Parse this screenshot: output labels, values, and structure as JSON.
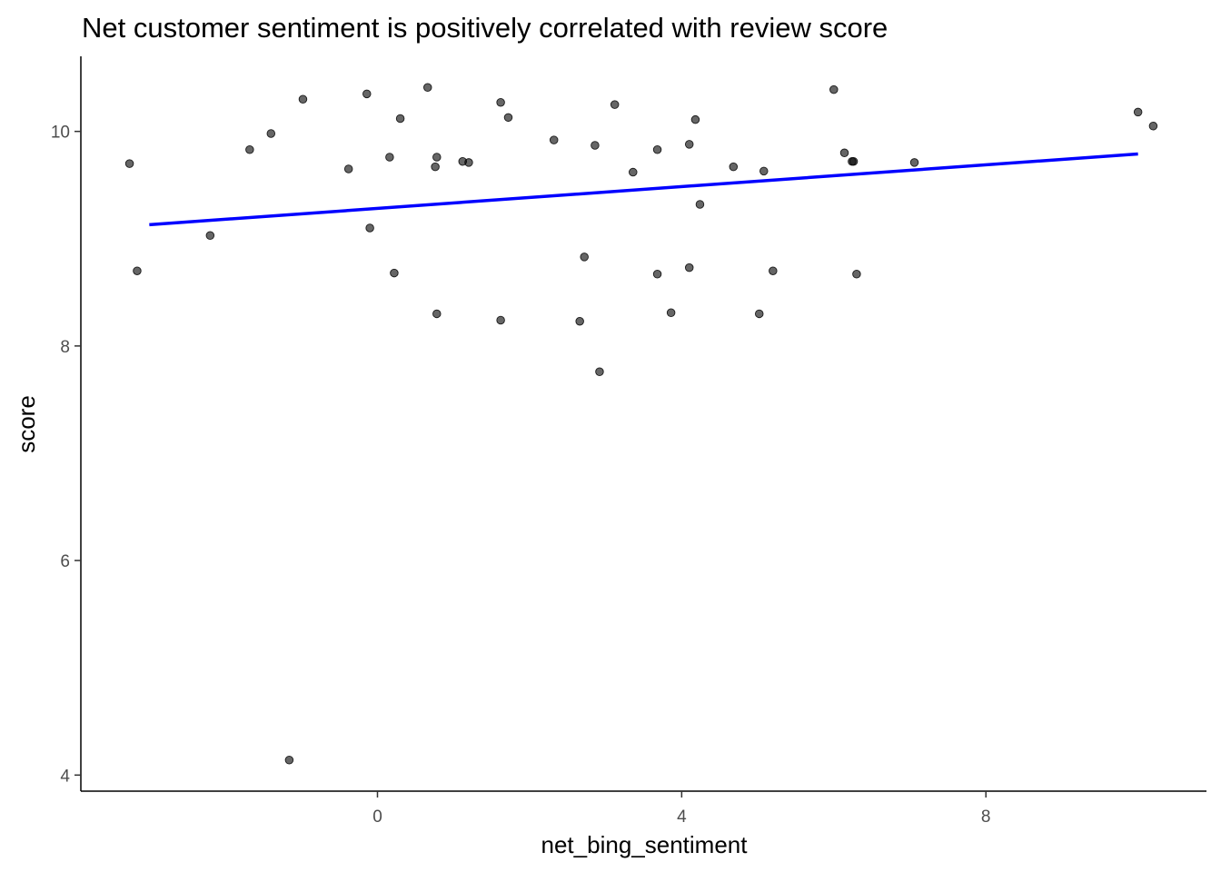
{
  "chart_data": {
    "type": "scatter",
    "title": "Net customer sentiment is positively correlated with review score",
    "xlabel": "net_bing_sentiment",
    "ylabel": "score",
    "xlim": [
      -3.9,
      10.9
    ],
    "ylim": [
      3.85,
      10.7
    ],
    "x_ticks": [
      0,
      4,
      8
    ],
    "y_ticks": [
      4,
      6,
      8,
      10
    ],
    "x_tick_labels": [
      "0",
      "4",
      "8"
    ],
    "y_tick_labels": [
      "4",
      "6",
      "8",
      "10"
    ],
    "grid": false,
    "legend": "none",
    "point_color": "#000000",
    "point_opacity": 0.6,
    "trend_color": "#0000ff",
    "trend_line": {
      "x": [
        -3.0,
        10.0
      ],
      "y": [
        9.13,
        9.79
      ]
    },
    "points": [
      {
        "x": -3.26,
        "y": 9.7
      },
      {
        "x": -3.16,
        "y": 8.7
      },
      {
        "x": -2.2,
        "y": 9.03
      },
      {
        "x": -1.68,
        "y": 9.83
      },
      {
        "x": -1.4,
        "y": 9.98
      },
      {
        "x": -1.16,
        "y": 4.14
      },
      {
        "x": -0.98,
        "y": 10.3
      },
      {
        "x": -0.38,
        "y": 9.65
      },
      {
        "x": -0.14,
        "y": 10.35
      },
      {
        "x": -0.1,
        "y": 9.1
      },
      {
        "x": 0.16,
        "y": 9.76
      },
      {
        "x": 0.22,
        "y": 8.68
      },
      {
        "x": 0.3,
        "y": 10.12
      },
      {
        "x": 0.66,
        "y": 10.41
      },
      {
        "x": 0.76,
        "y": 9.67
      },
      {
        "x": 0.78,
        "y": 9.76
      },
      {
        "x": 0.78,
        "y": 8.3
      },
      {
        "x": 1.12,
        "y": 9.72
      },
      {
        "x": 1.2,
        "y": 9.71
      },
      {
        "x": 1.62,
        "y": 10.27
      },
      {
        "x": 1.62,
        "y": 8.24
      },
      {
        "x": 1.72,
        "y": 10.13
      },
      {
        "x": 2.32,
        "y": 9.92
      },
      {
        "x": 2.66,
        "y": 8.23
      },
      {
        "x": 2.72,
        "y": 8.83
      },
      {
        "x": 2.86,
        "y": 9.87
      },
      {
        "x": 2.92,
        "y": 7.76
      },
      {
        "x": 3.12,
        "y": 10.25
      },
      {
        "x": 3.36,
        "y": 9.62
      },
      {
        "x": 3.68,
        "y": 8.67
      },
      {
        "x": 3.68,
        "y": 9.83
      },
      {
        "x": 3.86,
        "y": 8.31
      },
      {
        "x": 4.1,
        "y": 9.88
      },
      {
        "x": 4.1,
        "y": 8.73
      },
      {
        "x": 4.18,
        "y": 10.11
      },
      {
        "x": 4.24,
        "y": 9.32
      },
      {
        "x": 4.68,
        "y": 9.67
      },
      {
        "x": 5.02,
        "y": 8.3
      },
      {
        "x": 5.08,
        "y": 9.63
      },
      {
        "x": 5.2,
        "y": 8.7
      },
      {
        "x": 6.0,
        "y": 10.39
      },
      {
        "x": 6.14,
        "y": 9.8
      },
      {
        "x": 6.24,
        "y": 9.72
      },
      {
        "x": 6.26,
        "y": 9.72
      },
      {
        "x": 6.3,
        "y": 8.67
      },
      {
        "x": 7.06,
        "y": 9.71
      },
      {
        "x": 10.0,
        "y": 10.18
      },
      {
        "x": 10.2,
        "y": 10.05
      }
    ]
  }
}
